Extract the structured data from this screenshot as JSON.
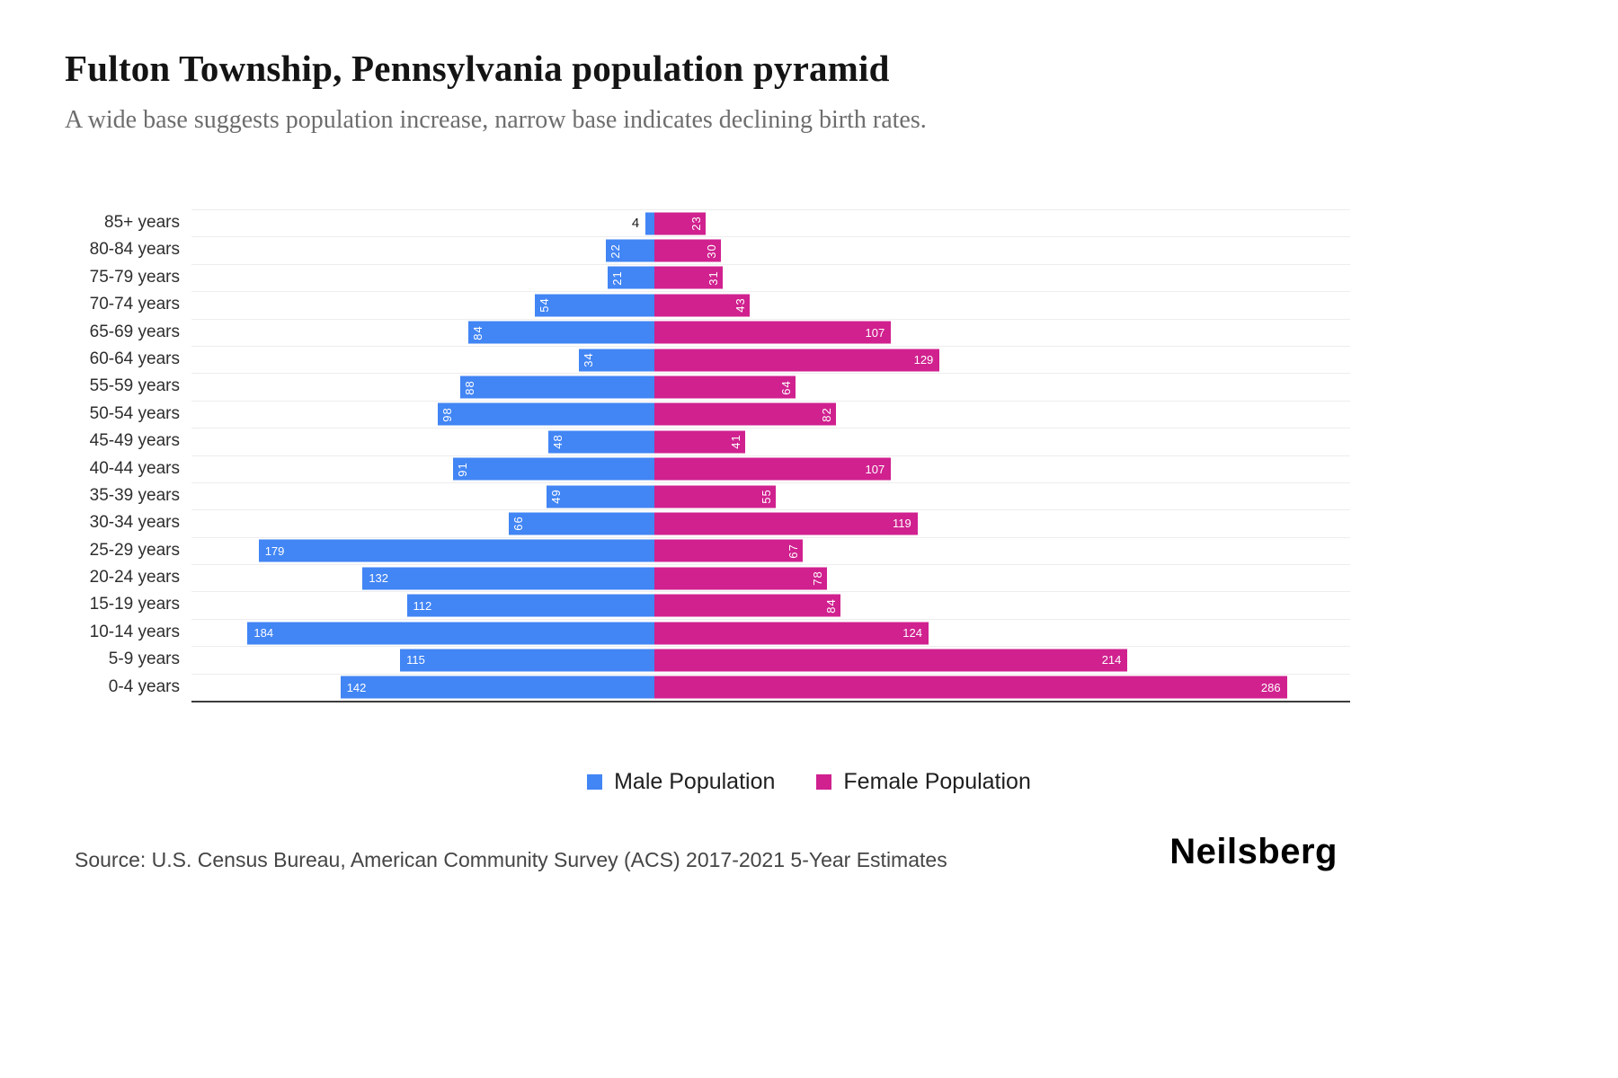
{
  "header": {
    "title": "Fulton Township, Pennsylvania population pyramid",
    "subtitle": "A wide base suggests population increase, narrow base indicates declining birth rates."
  },
  "chart_data": {
    "type": "bar",
    "variant": "population-pyramid",
    "orientation": "horizontal",
    "categories": [
      "85+ years",
      "80-84 years",
      "75-79 years",
      "70-74 years",
      "65-69 years",
      "60-64 years",
      "55-59 years",
      "50-54 years",
      "45-49 years",
      "40-44 years",
      "35-39 years",
      "30-34 years",
      "25-29 years",
      "20-24 years",
      "15-19 years",
      "10-14 years",
      "5-9 years",
      "0-4 years"
    ],
    "series": [
      {
        "name": "Male Population",
        "color": "#4285F4",
        "side": "left",
        "values": [
          4,
          22,
          21,
          54,
          84,
          34,
          88,
          98,
          48,
          91,
          49,
          66,
          179,
          132,
          112,
          184,
          115,
          142
        ]
      },
      {
        "name": "Female Population",
        "color": "#D0218F",
        "side": "right",
        "values": [
          23,
          30,
          31,
          43,
          107,
          129,
          64,
          82,
          41,
          107,
          55,
          119,
          67,
          78,
          84,
          124,
          214,
          286
        ]
      }
    ],
    "x_axis": {
      "max": 300,
      "center_origin": true,
      "ticks_visible": false
    },
    "grid": true,
    "legend_position": "bottom",
    "value_label_rule": "inside bar end; rotated vertical when value < 100; outside in black when value < 10"
  },
  "footer": {
    "source": "Source: U.S. Census Bureau, American Community Survey (ACS) 2017-2021 5-Year Estimates",
    "brand": "Neilsberg"
  }
}
